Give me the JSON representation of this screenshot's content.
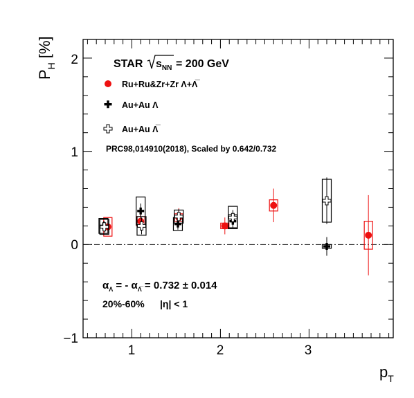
{
  "chart_data": {
    "type": "scatter",
    "xlabel": "p",
    "xlabel_sub": "T",
    "ylabel": "P",
    "ylabel_sub": "H",
    "ylabel_unit": "[%]",
    "xlim": [
      0.45,
      3.95
    ],
    "ylim": [
      -1,
      2.2
    ],
    "x_ticks": [
      1,
      2,
      3
    ],
    "y_ticks": [
      -1,
      0,
      1,
      2
    ],
    "tick_labels_x": [
      "1",
      "2",
      "3"
    ],
    "tick_labels_y": [
      "−1",
      "0",
      "1",
      "2"
    ],
    "zero_line": "dash-dot",
    "grid": false,
    "legend_placement": "top-left",
    "header": {
      "experiment": "STAR",
      "sqrt": "s",
      "sqrt_sub": "NN",
      "energy": "= 200 GeV"
    },
    "note": "PRC98,014910(2018), Scaled by 0.642/0.732",
    "alpha_text": {
      "a1": "α",
      "s1": "Λ",
      "mid": " = - ",
      "a2": "α",
      "s2": "Λ̅",
      "value": " = 0.732 ± 0.014"
    },
    "centrality": "20%-60%",
    "eta_cut": "|η| < 1",
    "series": [
      {
        "name": "Ru+Ru&Zr+Zr  Λ+Λ̅",
        "marker": "circle",
        "color": "#ee1111",
        "points": [
          {
            "x": 0.73,
            "y": 0.19,
            "err": 0.07,
            "sys": 0.1
          },
          {
            "x": 1.1,
            "y": 0.25,
            "err": 0.09,
            "sys": 0.05
          },
          {
            "x": 1.53,
            "y": 0.29,
            "err": 0.1,
            "sys": 0.04
          },
          {
            "x": 2.05,
            "y": 0.2,
            "err": 0.09,
            "sys": 0.03
          },
          {
            "x": 2.6,
            "y": 0.42,
            "err": 0.18,
            "sys": 0.06
          },
          {
            "x": 3.67,
            "y": 0.1,
            "err": 0.43,
            "sys": 0.15
          }
        ]
      },
      {
        "name": "Au+Au  Λ",
        "marker": "cross-filled",
        "color": "#000000",
        "points": [
          {
            "x": 0.68,
            "y": 0.2,
            "err": 0.05,
            "sys": 0.08
          },
          {
            "x": 1.1,
            "y": 0.36,
            "err": 0.08,
            "sys": 0.15
          },
          {
            "x": 1.52,
            "y": 0.22,
            "err": 0.06,
            "sys": 0.07
          },
          {
            "x": 2.14,
            "y": 0.25,
            "err": 0.07,
            "sys": 0.07
          },
          {
            "x": 3.2,
            "y": -0.02,
            "err": 0.1,
            "sys": 0.02
          }
        ]
      },
      {
        "name": "Au+Au  Λ̅",
        "marker": "cross-open",
        "color": "#000000",
        "points": [
          {
            "x": 0.69,
            "y": 0.19,
            "err": 0.06,
            "sys": 0.08
          },
          {
            "x": 1.11,
            "y": 0.2,
            "err": 0.09,
            "sys": 0.1
          },
          {
            "x": 1.53,
            "y": 0.3,
            "err": 0.08,
            "sys": 0.07
          },
          {
            "x": 2.14,
            "y": 0.29,
            "err": 0.08,
            "sys": 0.12
          },
          {
            "x": 3.2,
            "y": 0.47,
            "err": 0.25,
            "sys": 0.23
          }
        ]
      }
    ]
  },
  "colors": {
    "red": "#ee1111",
    "black": "#000000"
  }
}
